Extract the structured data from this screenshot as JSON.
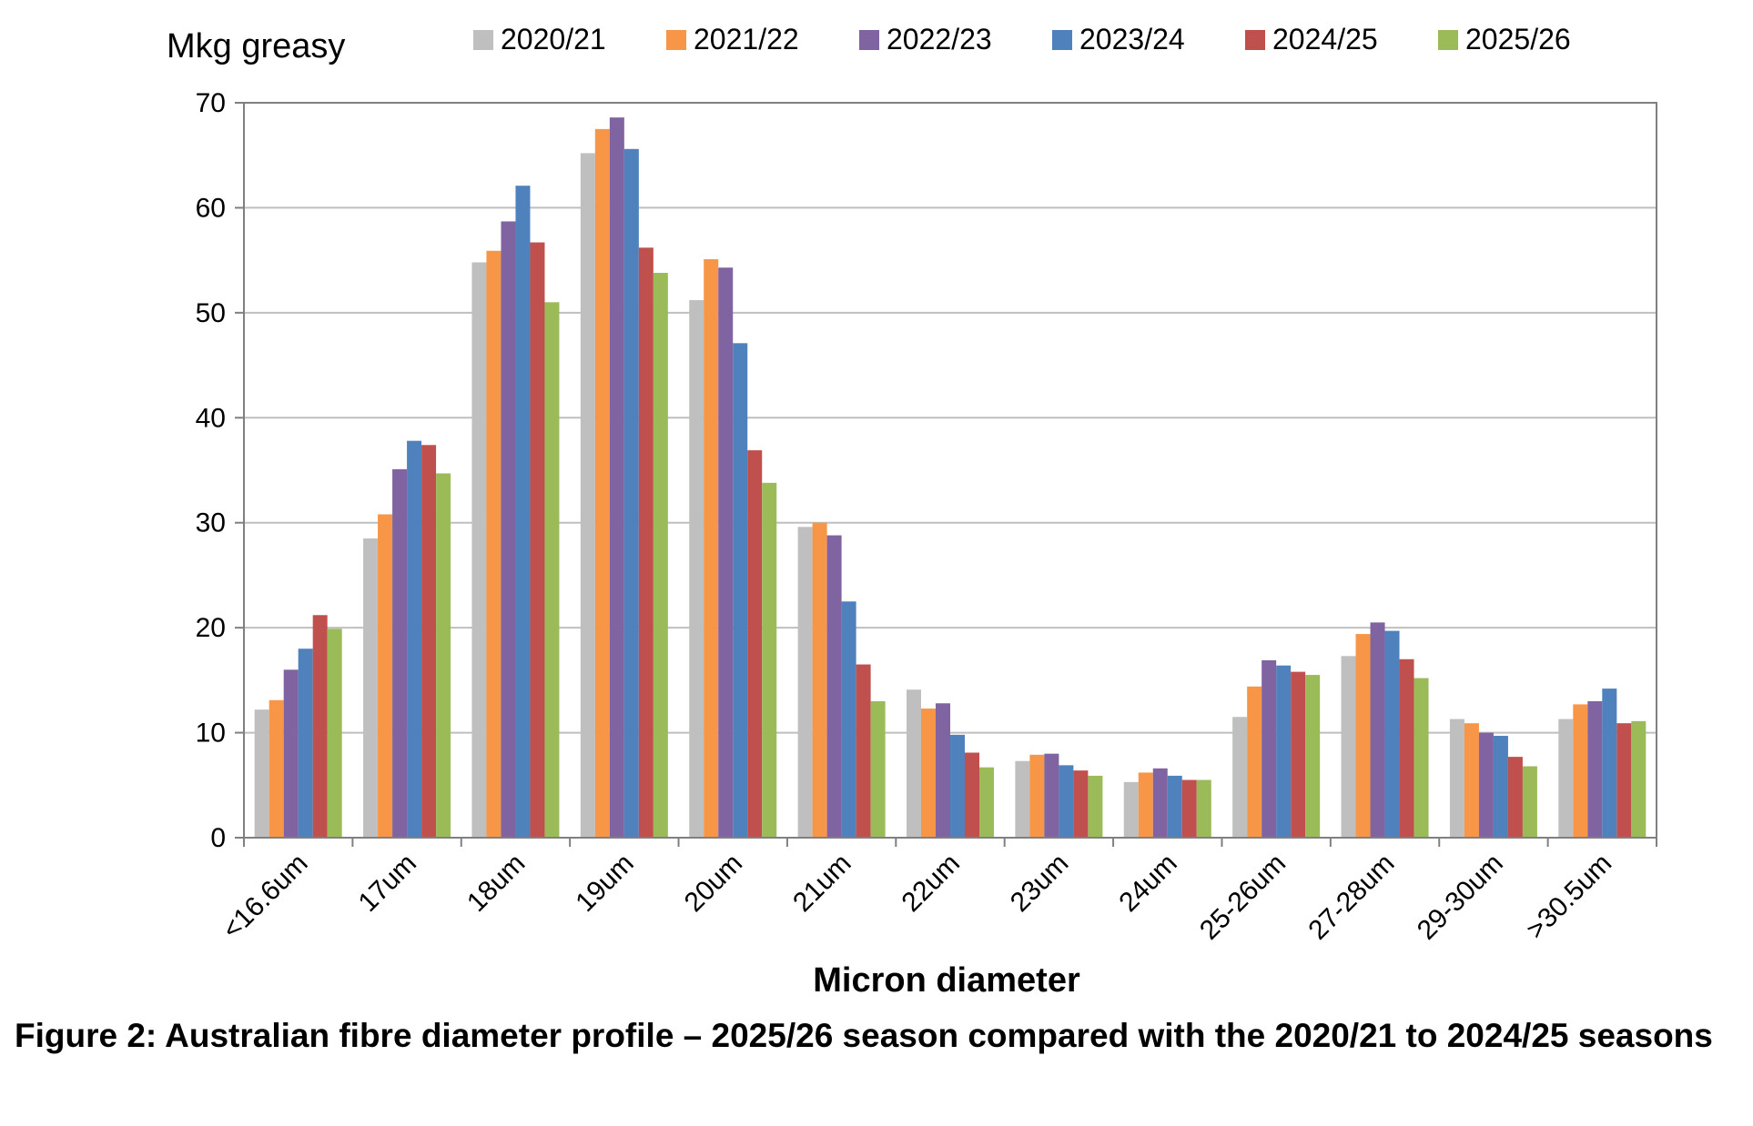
{
  "caption": "Figure 2: Australian fibre diameter profile – 2025/26 season compared with the 2020/21 to 2024/25 seasons",
  "chart_data": {
    "type": "bar",
    "title": "",
    "ylabel": "Mkg greasy",
    "xlabel": "Micron diameter",
    "ylim": [
      0,
      70
    ],
    "yticks": [
      0,
      10,
      20,
      30,
      40,
      50,
      60,
      70
    ],
    "grid": true,
    "legend_position": "top",
    "categories": [
      "<16.6um",
      "17um",
      "18um",
      "19um",
      "20um",
      "21um",
      "22um",
      "23um",
      "24um",
      "25-26um",
      "27-28um",
      "29-30um",
      ">30.5um"
    ],
    "series": [
      {
        "name": "2020/21",
        "color": "#bfbfbf",
        "values": [
          12.2,
          28.5,
          54.8,
          65.2,
          51.2,
          29.6,
          14.1,
          7.3,
          5.3,
          11.5,
          17.3,
          11.3,
          11.3
        ]
      },
      {
        "name": "2021/22",
        "color": "#f79646",
        "values": [
          13.1,
          30.8,
          55.9,
          67.5,
          55.1,
          30.0,
          12.3,
          7.9,
          6.2,
          14.4,
          19.4,
          10.9,
          12.7
        ]
      },
      {
        "name": "2022/23",
        "color": "#8064a2",
        "values": [
          16.0,
          35.1,
          58.7,
          68.6,
          54.3,
          28.8,
          12.8,
          8.0,
          6.6,
          16.9,
          20.5,
          10.0,
          13.0
        ]
      },
      {
        "name": "2023/24",
        "color": "#4f81bd",
        "values": [
          18.0,
          37.8,
          62.1,
          65.6,
          47.1,
          22.5,
          9.8,
          6.9,
          5.9,
          16.4,
          19.7,
          9.7,
          14.2
        ]
      },
      {
        "name": "2024/25",
        "color": "#c0504d",
        "values": [
          21.2,
          37.4,
          56.7,
          56.2,
          36.9,
          16.5,
          8.1,
          6.4,
          5.5,
          15.8,
          17.0,
          7.7,
          10.9
        ]
      },
      {
        "name": "2025/26",
        "color": "#9bbb59",
        "values": [
          19.9,
          34.7,
          51.0,
          53.8,
          33.8,
          13.0,
          6.7,
          5.9,
          5.5,
          15.5,
          15.2,
          6.8,
          11.1
        ]
      }
    ]
  }
}
